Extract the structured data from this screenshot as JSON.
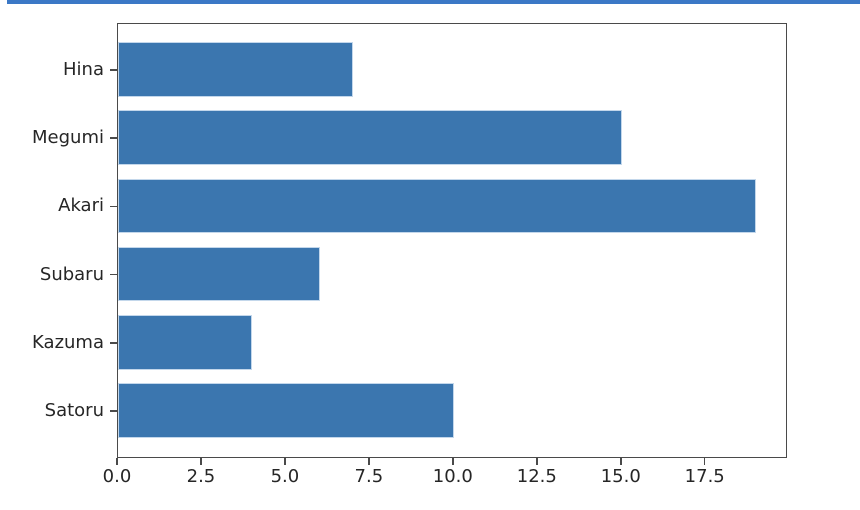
{
  "figure": {
    "background": "#ffffff",
    "top_accent_color": "#3B78C6"
  },
  "chart_data": {
    "type": "bar",
    "orientation": "horizontal",
    "title": "",
    "xlabel": "",
    "ylabel": "",
    "categories": [
      "Hina",
      "Megumi",
      "Akari",
      "Subaru",
      "Kazuma",
      "Satoru"
    ],
    "values": [
      7,
      15,
      19,
      6,
      4,
      10
    ],
    "xlim": [
      0,
      19.95
    ],
    "xticks": [
      0,
      2.5,
      5,
      7.5,
      10,
      12.5,
      15,
      17.5
    ],
    "xtick_labels": [
      "0.0",
      "2.5",
      "5.0",
      "7.5",
      "10.0",
      "12.5",
      "15.0",
      "17.5"
    ],
    "bar_color": "#3B76AF",
    "bar_edge_color": "#C3D7EB",
    "axis_color": "#4A4A4A",
    "tick_label_color": "#262626",
    "grid": false,
    "legend": null
  }
}
